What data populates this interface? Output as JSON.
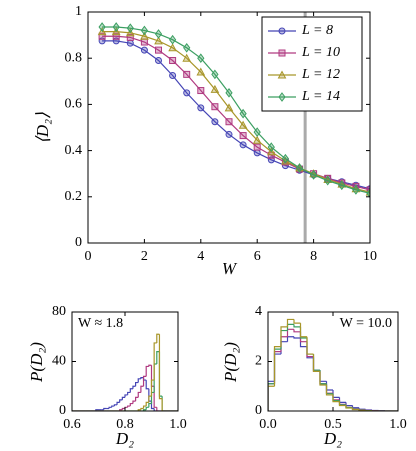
{
  "chart_data": [
    {
      "type": "line",
      "xlabel": "W",
      "ylabel": "⟨D₂⟩",
      "x": [
        0.5,
        1,
        1.5,
        2,
        2.5,
        3,
        3.5,
        4,
        4.5,
        5,
        5.5,
        6,
        6.5,
        7,
        7.5,
        8,
        8.5,
        9,
        9.5,
        10
      ],
      "series": [
        {
          "name": "L = 8",
          "color": "#4545b5",
          "marker": "circle",
          "values": [
            0.875,
            0.875,
            0.865,
            0.835,
            0.79,
            0.725,
            0.65,
            0.585,
            0.525,
            0.47,
            0.425,
            0.39,
            0.36,
            0.335,
            0.315,
            0.295,
            0.28,
            0.265,
            0.25,
            0.235
          ]
        },
        {
          "name": "L = 10",
          "color": "#b03a80",
          "marker": "square",
          "values": [
            0.895,
            0.895,
            0.89,
            0.87,
            0.835,
            0.79,
            0.73,
            0.66,
            0.59,
            0.525,
            0.465,
            0.415,
            0.38,
            0.35,
            0.32,
            0.3,
            0.28,
            0.26,
            0.245,
            0.23
          ]
        },
        {
          "name": "L = 12",
          "color": "#a8962a",
          "marker": "triangle",
          "values": [
            0.915,
            0.915,
            0.91,
            0.895,
            0.875,
            0.845,
            0.8,
            0.74,
            0.665,
            0.585,
            0.51,
            0.445,
            0.395,
            0.355,
            0.325,
            0.3,
            0.275,
            0.255,
            0.235,
            0.22
          ]
        },
        {
          "name": "L = 14",
          "color": "#3c9f62",
          "marker": "diamond",
          "values": [
            0.935,
            0.935,
            0.93,
            0.92,
            0.905,
            0.88,
            0.845,
            0.8,
            0.73,
            0.65,
            0.56,
            0.48,
            0.415,
            0.365,
            0.325,
            0.295,
            0.27,
            0.25,
            0.23,
            0.215
          ]
        }
      ],
      "xlim": [
        0,
        10
      ],
      "xticks": [
        0,
        2,
        4,
        6,
        8,
        10
      ],
      "ylim": [
        0,
        1
      ],
      "yticks": [
        0,
        0.2,
        0.4,
        0.6,
        0.8,
        1
      ],
      "vline": 7.7,
      "vline_color": "#aaaaaa",
      "legend": "top-right",
      "grid": false
    },
    {
      "type": "histogram",
      "xlabel": "D₂",
      "ylabel": "P(D₂)",
      "annotation": "W ≈ 1.8",
      "annotation_position": "top-left",
      "bins": [
        0.6,
        0.61,
        0.62,
        0.63,
        0.64,
        0.65,
        0.66,
        0.67,
        0.68,
        0.69,
        0.7,
        0.71,
        0.72,
        0.73,
        0.74,
        0.75,
        0.76,
        0.77,
        0.78,
        0.79,
        0.8,
        0.81,
        0.82,
        0.83,
        0.84,
        0.85,
        0.86,
        0.87,
        0.88,
        0.89,
        0.9,
        0.91,
        0.92,
        0.93,
        0.94,
        0.95,
        0.96,
        0.97,
        0.98,
        0.99,
        1.0
      ],
      "series": [
        {
          "color": "#4545b5",
          "values": [
            0,
            0,
            0,
            0,
            0,
            0,
            0,
            0,
            0,
            1,
            1,
            1,
            2,
            2,
            3,
            4,
            5,
            7,
            9,
            11,
            13,
            15,
            18,
            20,
            23,
            26,
            27,
            25,
            18,
            8,
            2,
            0,
            0,
            0,
            0,
            0,
            0,
            0,
            0,
            0
          ]
        },
        {
          "color": "#b03a80",
          "values": [
            0,
            0,
            0,
            0,
            0,
            0,
            0,
            0,
            0,
            0,
            0,
            0,
            0,
            0,
            0,
            0,
            0,
            0,
            1,
            2,
            3,
            4,
            6,
            8,
            11,
            15,
            20,
            28,
            36,
            37,
            20,
            3,
            0,
            0,
            0,
            0,
            0,
            0,
            0,
            0
          ]
        },
        {
          "color": "#3c9f62",
          "values": [
            0,
            0,
            0,
            0,
            0,
            0,
            0,
            0,
            0,
            0,
            0,
            0,
            0,
            0,
            0,
            0,
            0,
            0,
            0,
            0,
            0,
            0,
            0,
            0,
            0,
            0,
            0,
            1,
            3,
            6,
            15,
            38,
            48,
            12,
            0,
            0,
            0,
            0,
            0,
            0
          ]
        },
        {
          "color": "#a8962a",
          "values": [
            0,
            0,
            0,
            0,
            0,
            0,
            0,
            0,
            0,
            0,
            0,
            0,
            0,
            0,
            0,
            0,
            0,
            0,
            0,
            0,
            0,
            0,
            0,
            0,
            0,
            1,
            2,
            4,
            7,
            12,
            25,
            55,
            62,
            10,
            0,
            0,
            0,
            0,
            0,
            0
          ]
        }
      ],
      "xlim": [
        0.6,
        1
      ],
      "xticks": [
        0.6,
        0.8,
        {
          "value": 1,
          "label": "1.0"
        }
      ],
      "ylim": [
        0,
        80
      ],
      "yticks": [
        0,
        40,
        80
      ]
    },
    {
      "type": "histogram",
      "xlabel": "D₂",
      "ylabel": "P(D₂)",
      "annotation": "W = 10.0",
      "annotation_position": "top-right",
      "bins": [
        0,
        0.05,
        0.1,
        0.15,
        0.2,
        0.25,
        0.3,
        0.35,
        0.4,
        0.45,
        0.5,
        0.55,
        0.6,
        0.65,
        0.7,
        0.75,
        0.8,
        0.85,
        0.9,
        0.95,
        1.0
      ],
      "series": [
        {
          "color": "#4545b5",
          "values": [
            1.2,
            2.3,
            2.8,
            3.0,
            2.95,
            2.6,
            2.15,
            1.65,
            1.2,
            0.85,
            0.55,
            0.35,
            0.22,
            0.13,
            0.07,
            0.04,
            0.02,
            0.01,
            0,
            0
          ]
        },
        {
          "color": "#b03a80",
          "values": [
            1.1,
            2.4,
            3.0,
            3.3,
            3.2,
            2.8,
            2.2,
            1.6,
            1.1,
            0.72,
            0.45,
            0.27,
            0.15,
            0.08,
            0.04,
            0.02,
            0.01,
            0,
            0,
            0
          ]
        },
        {
          "color": "#3c9f62",
          "values": [
            1.1,
            2.5,
            3.25,
            3.5,
            3.4,
            2.95,
            2.3,
            1.65,
            1.1,
            0.7,
            0.42,
            0.25,
            0.14,
            0.07,
            0.035,
            0.015,
            0,
            0,
            0,
            0
          ]
        },
        {
          "color": "#a8962a",
          "values": [
            1.0,
            2.6,
            3.4,
            3.7,
            3.55,
            3.0,
            2.3,
            1.6,
            1.05,
            0.65,
            0.38,
            0.22,
            0.12,
            0.06,
            0.03,
            0.01,
            0,
            0,
            0,
            0
          ]
        }
      ],
      "xlim": [
        0,
        1
      ],
      "xticks": [
        {
          "value": 0,
          "label": "0.0"
        },
        0.5,
        {
          "value": 1,
          "label": "1.0"
        }
      ],
      "ylim": [
        0,
        4
      ],
      "yticks": [
        0,
        2,
        4
      ]
    }
  ]
}
